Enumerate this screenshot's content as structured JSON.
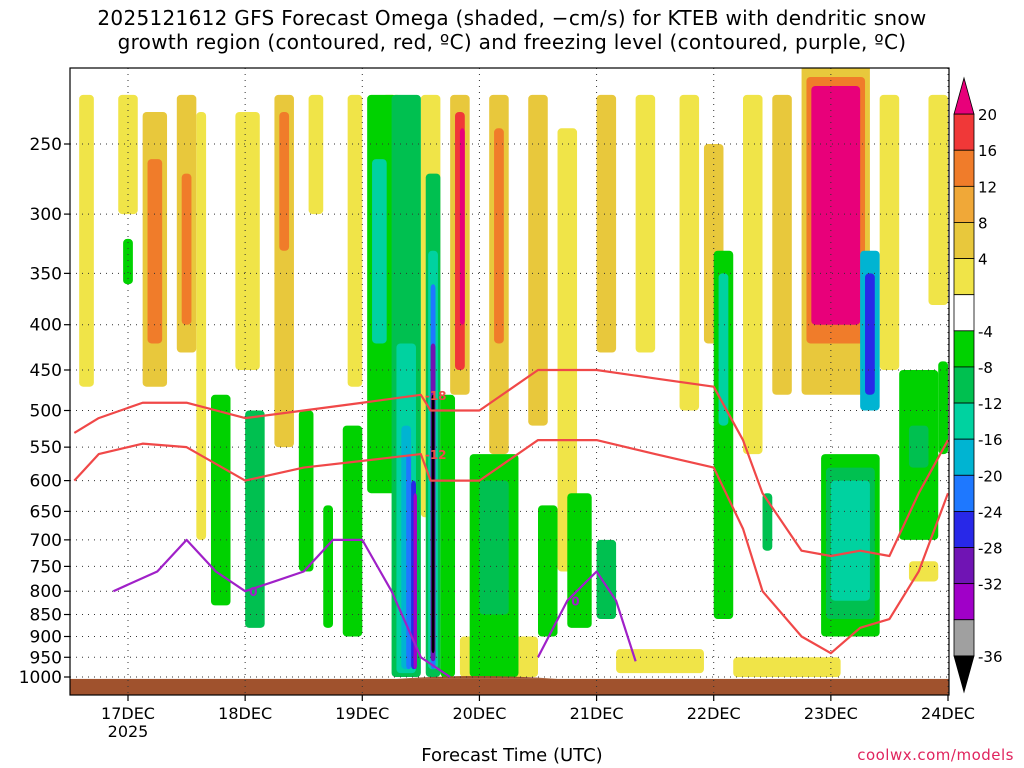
{
  "title": {
    "line1": "2025121612 GFS Forecast Omega (shaded, −cm/s) for KTEB with dendritic snow",
    "line2": "growth region (contoured, red, ºC) and freezing level (contoured, purple, ºC)"
  },
  "credit": "coolwx.com/models",
  "chart_data": {
    "type": "heatmap",
    "xlabel": "Forecast Time (UTC)",
    "ylabel": "",
    "x_ticks": [
      "17DEC",
      "18DEC",
      "19DEC",
      "20DEC",
      "21DEC",
      "22DEC",
      "23DEC",
      "24DEC"
    ],
    "x_sublabel": "2025",
    "x_range_hours_from_17dec00z": [
      -11,
      168
    ],
    "y_ticks": [
      250,
      300,
      350,
      400,
      450,
      500,
      550,
      600,
      650,
      700,
      750,
      800,
      850,
      900,
      950,
      1000
    ],
    "y_range_hpa": [
      200,
      1020
    ],
    "y_scale": "pressure (log-like, inverted)",
    "colorbar": {
      "ticks": [
        20,
        16,
        12,
        8,
        4,
        -4,
        -8,
        -12,
        -16,
        -20,
        -24,
        -28,
        -32,
        -36
      ],
      "colors": [
        "#e8007a",
        "#f03838",
        "#f07c2a",
        "#f0a838",
        "#e8c83c",
        "#f0e448",
        "#ffffff",
        "#00d200",
        "#00c050",
        "#00d2a0",
        "#00b4d2",
        "#1e78ff",
        "#2828e8",
        "#7014b4",
        "#a000c8",
        "#a0a0a0",
        "#000000"
      ]
    },
    "contours": {
      "dendritic_snow_red": [
        {
          "label": "-18",
          "hours": [
            -11,
            -6,
            3,
            12,
            24,
            36,
            48,
            60,
            62,
            72,
            84,
            96,
            108,
            120,
            126,
            130,
            138,
            144,
            150,
            156,
            162,
            168
          ],
          "pres": [
            530,
            510,
            490,
            490,
            510,
            500,
            490,
            480,
            500,
            500,
            450,
            450,
            460,
            470,
            540,
            620,
            720,
            730,
            720,
            730,
            620,
            540
          ]
        },
        {
          "label": "-12",
          "hours": [
            -11,
            -6,
            3,
            12,
            24,
            36,
            48,
            60,
            62,
            72,
            84,
            96,
            108,
            120,
            126,
            130,
            138,
            144,
            150,
            156,
            162,
            168
          ],
          "pres": [
            600,
            560,
            545,
            550,
            600,
            580,
            570,
            560,
            600,
            600,
            540,
            540,
            560,
            580,
            680,
            800,
            900,
            940,
            880,
            860,
            760,
            620
          ]
        }
      ],
      "freezing_level_purple": [
        {
          "label": "0",
          "hours": [
            -3,
            6,
            12,
            18,
            24,
            30,
            36,
            42,
            48,
            54,
            60,
            66
          ],
          "pres": [
            800,
            760,
            700,
            760,
            800,
            780,
            760,
            700,
            700,
            800,
            950,
            1000
          ]
        },
        {
          "label": "0",
          "hours": [
            84,
            90,
            96,
            100,
            104
          ],
          "pres": [
            950,
            820,
            760,
            820,
            960
          ]
        }
      ]
    }
  }
}
